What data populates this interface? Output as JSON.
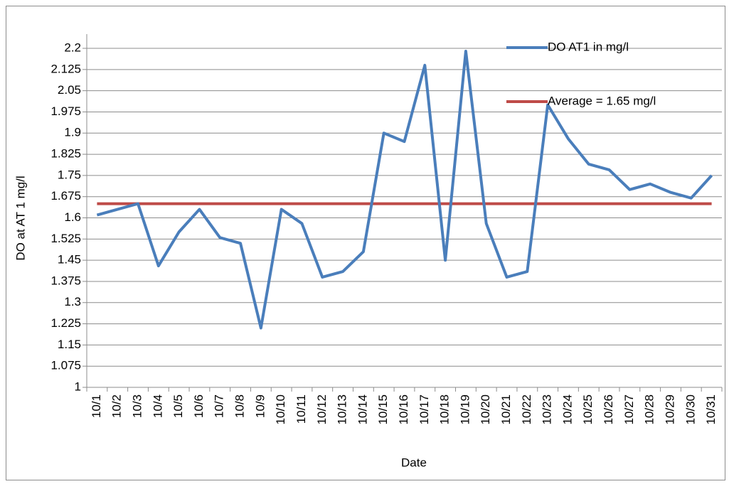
{
  "chart_data": {
    "type": "line",
    "x_label": "Date",
    "y_label": "DO at AT 1 mg/l",
    "categories": [
      "10/1",
      "10/2",
      "10/3",
      "10/4",
      "10/5",
      "10/6",
      "10/7",
      "10/8",
      "10/9",
      "10/10",
      "10/11",
      "10/12",
      "10/13",
      "10/14",
      "10/15",
      "10/16",
      "10/17",
      "10/18",
      "10/19",
      "10/20",
      "10/21",
      "10/22",
      "10/23",
      "10/24",
      "10/25",
      "10/26",
      "10/27",
      "10/28",
      "10/29",
      "10/30",
      "10/31"
    ],
    "series": [
      {
        "name": "DO AT1 in mg/l",
        "color": "#4a7ebb",
        "values": [
          1.61,
          1.63,
          1.65,
          1.43,
          1.55,
          1.63,
          1.53,
          1.51,
          1.21,
          1.63,
          1.58,
          1.39,
          1.41,
          1.48,
          1.9,
          1.87,
          2.14,
          1.45,
          2.19,
          1.58,
          1.39,
          1.41,
          2.0,
          1.88,
          1.79,
          1.77,
          1.7,
          1.72,
          1.69,
          1.67,
          1.75
        ]
      },
      {
        "name": "Average = 1.65 mg/l",
        "color": "#be4b48",
        "values": [
          1.65,
          1.65,
          1.65,
          1.65,
          1.65,
          1.65,
          1.65,
          1.65,
          1.65,
          1.65,
          1.65,
          1.65,
          1.65,
          1.65,
          1.65,
          1.65,
          1.65,
          1.65,
          1.65,
          1.65,
          1.65,
          1.65,
          1.65,
          1.65,
          1.65,
          1.65,
          1.65,
          1.65,
          1.65,
          1.65,
          1.65
        ]
      }
    ],
    "ylim": [
      1,
      2.2
    ],
    "yticks": [
      1,
      1.075,
      1.15,
      1.225,
      1.3,
      1.375,
      1.45,
      1.525,
      1.6,
      1.675,
      1.75,
      1.825,
      1.9,
      1.975,
      2.05,
      2.125,
      2.2
    ],
    "grid": true,
    "legend": "top-right"
  }
}
